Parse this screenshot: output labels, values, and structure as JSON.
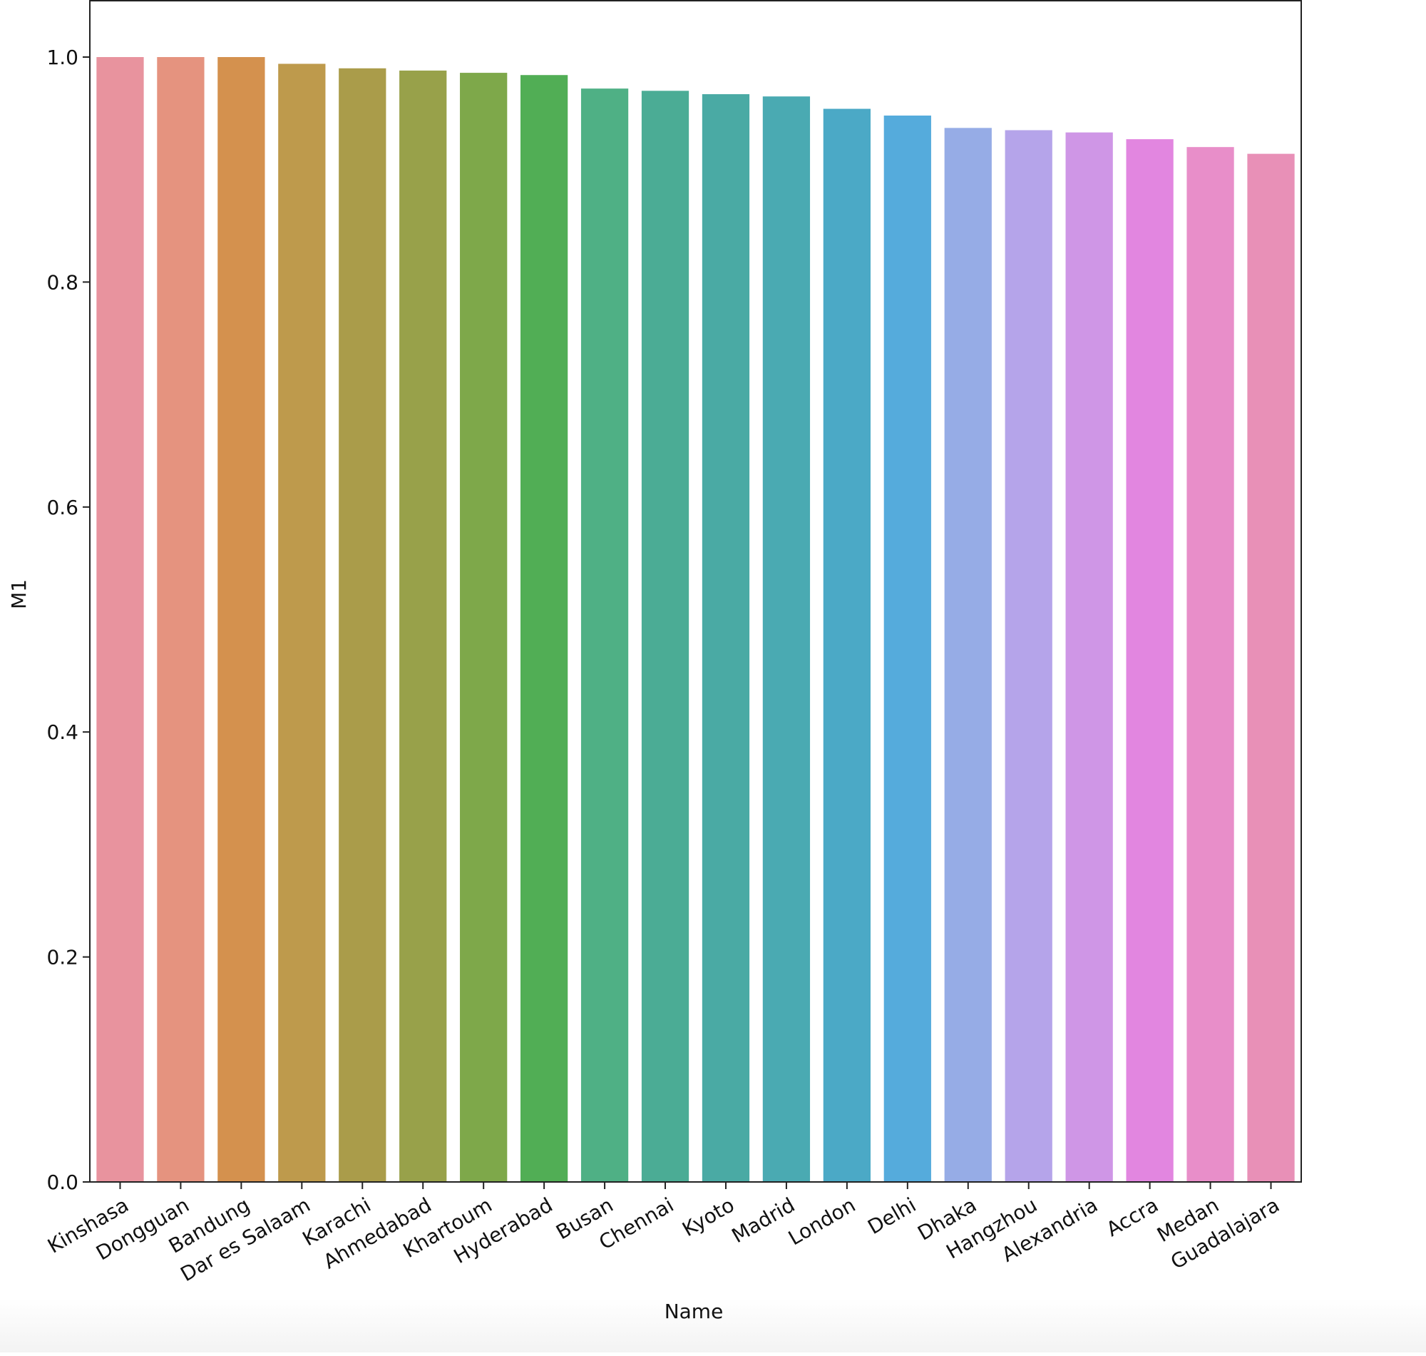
{
  "chart_data": {
    "type": "bar",
    "title": "",
    "xlabel": "Name",
    "ylabel": "M1",
    "ylim": [
      0.0,
      1.05
    ],
    "yticks": [
      "0.0",
      "0.2",
      "0.4",
      "0.6",
      "0.8",
      "1.0"
    ],
    "grid": false,
    "legend": "none",
    "categories": [
      "Kinshasa",
      "Dongguan",
      "Bandung",
      "Dar es Salaam",
      "Karachi",
      "Ahmedabad",
      "Khartoum",
      "Hyderabad",
      "Busan",
      "Chennai",
      "Kyoto",
      "Madrid",
      "London",
      "Delhi",
      "Dhaka",
      "Hangzhou",
      "Alexandria",
      "Accra",
      "Medan",
      "Guadalajara"
    ],
    "values": [
      1.0,
      1.0,
      1.0,
      0.994,
      0.99,
      0.988,
      0.986,
      0.984,
      0.972,
      0.97,
      0.967,
      0.965,
      0.954,
      0.948,
      0.937,
      0.935,
      0.933,
      0.927,
      0.92,
      0.914
    ],
    "colors": [
      "#e8939e",
      "#e5937f",
      "#d4914e",
      "#be9a4c",
      "#aa9c4a",
      "#98a14a",
      "#7ea84a",
      "#51ae55",
      "#4fb085",
      "#4bac95",
      "#4aaaa4",
      "#4aaab2",
      "#4ba9c6",
      "#55abdc",
      "#96ace6",
      "#b5a4ea",
      "#cf96e6",
      "#e286e0",
      "#e88ec9",
      "#e890b7"
    ]
  }
}
